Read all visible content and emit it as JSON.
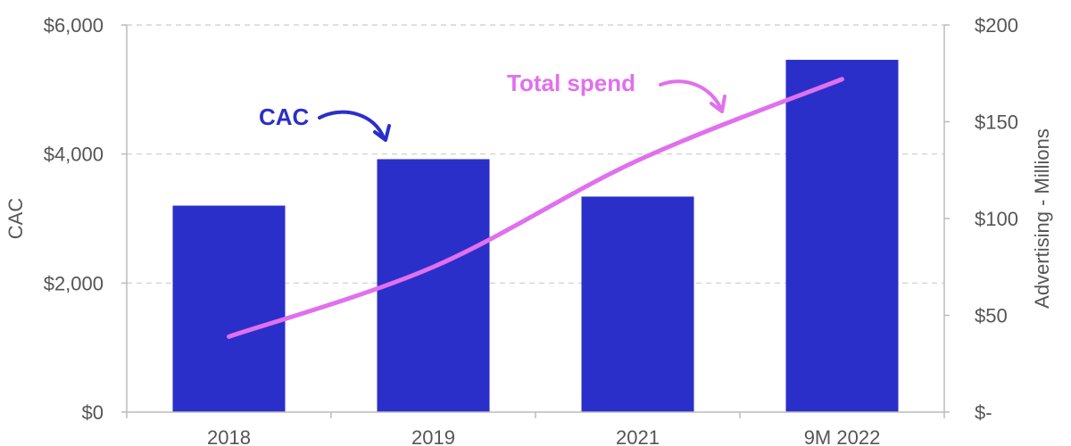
{
  "chart_data": {
    "type": "bar",
    "categories": [
      "2018",
      "2019",
      "2021",
      "9M 2022"
    ],
    "series": [
      {
        "name": "CAC",
        "type": "bar",
        "axis": "left",
        "values": [
          3200,
          3920,
          3340,
          5460
        ]
      },
      {
        "name": "Total spend",
        "type": "line",
        "axis": "right",
        "values": [
          39,
          75,
          130,
          172
        ]
      }
    ],
    "y_left": {
      "label": "CAC",
      "range": [
        0,
        6000
      ],
      "ticks": [
        "$0",
        "$2,000",
        "$4,000",
        "$6,000"
      ]
    },
    "y_right": {
      "label": "Advertising - Millions",
      "range": [
        0,
        200
      ],
      "ticks": [
        "$-",
        "$50",
        "$100",
        "$150",
        "$200"
      ]
    },
    "grid": true,
    "annotations": [
      {
        "text": "CAC",
        "target": "bars"
      },
      {
        "text": "Total spend",
        "target": "line"
      }
    ],
    "colors": {
      "bar": "#2b2fc9",
      "line": "#e070ee",
      "cac_annotation": "#2b2fc9",
      "spend_annotation": "#e070ee",
      "grid": "#cccccc",
      "axis": "#bbbbbb",
      "text": "#555555"
    }
  }
}
